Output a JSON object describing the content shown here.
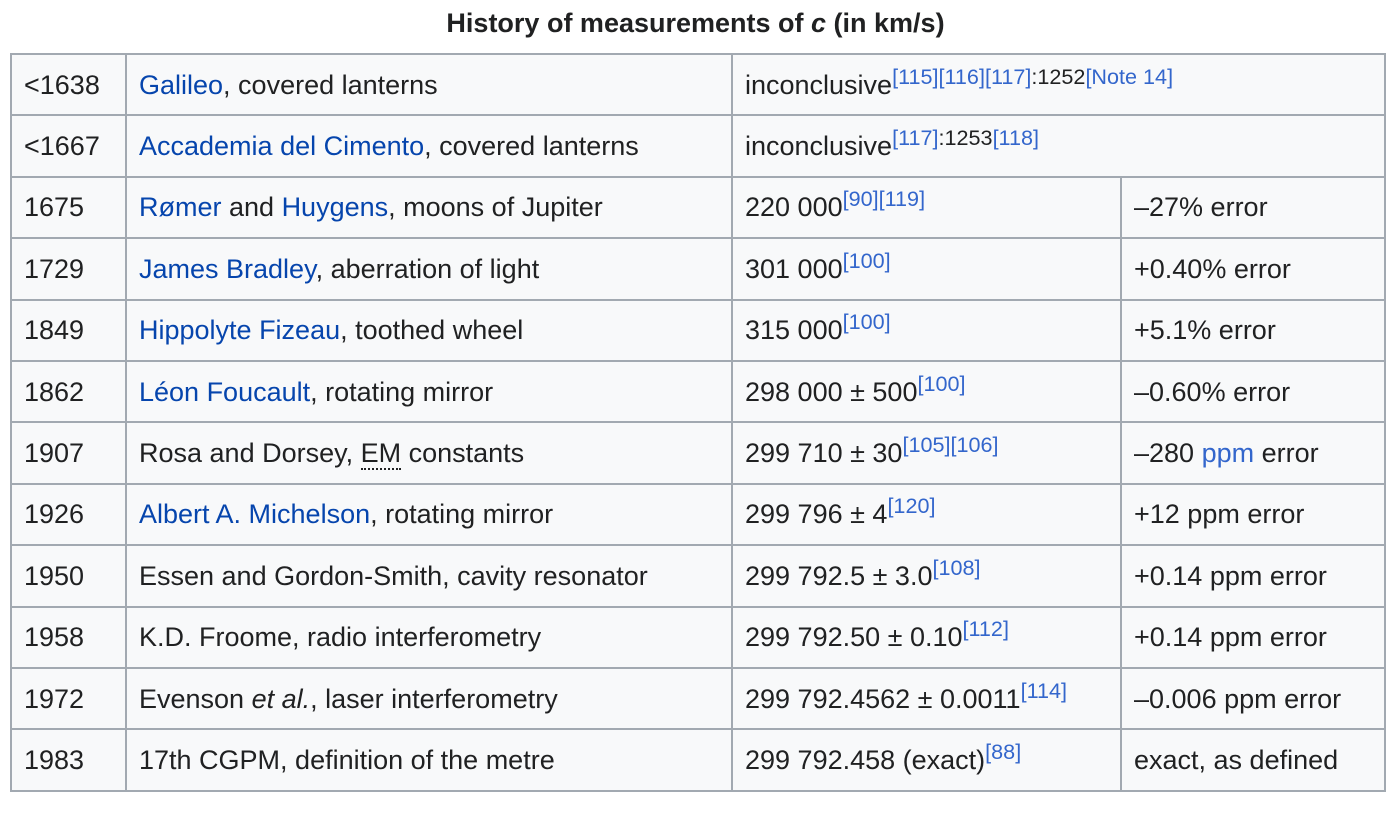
{
  "caption": {
    "prefix": "History of measurements of ",
    "var": "c",
    "suffix": " (in km/s)"
  },
  "rows": [
    {
      "year": "<1638",
      "link": "Galileo",
      "desc_rest": ", covered lanterns",
      "value": "inconclusive",
      "refs": [
        "[115]",
        "[116]",
        "[117]"
      ],
      "page": ":1252",
      "note": "[Note 14]"
    },
    {
      "year": "<1667",
      "link": "Accademia del Cimento",
      "desc_rest": ", covered lanterns",
      "value": "inconclusive",
      "refs": [
        "[117]"
      ],
      "page": ":1253",
      "refs2": [
        "[118]"
      ]
    },
    {
      "year": "1675",
      "link1": "Rømer",
      "and": " and ",
      "link2": "Huygens",
      "desc_rest": ", moons of Jupiter",
      "value": "220 000",
      "refs": [
        "[90]",
        "[119]"
      ],
      "error": "–27% error"
    },
    {
      "year": "1729",
      "link": "James Bradley",
      "desc_rest": ", aberration of light",
      "value": "301 000",
      "refs": [
        "[100]"
      ],
      "error": "+0.40% error"
    },
    {
      "year": "1849",
      "link": "Hippolyte Fizeau",
      "desc_rest": ", toothed wheel",
      "value": "315 000",
      "refs": [
        "[100]"
      ],
      "error": "+5.1% error"
    },
    {
      "year": "1862",
      "link": "Léon Foucault",
      "desc_rest": ", rotating mirror",
      "value": "298 000 ± 500",
      "refs": [
        "[100]"
      ],
      "error": "–0.60% error"
    },
    {
      "year": "1907",
      "desc_pre": "Rosa and Dorsey, ",
      "abbr": "EM",
      "desc_rest": " constants",
      "value": "299 710 ± 30",
      "refs": [
        "[105]",
        "[106]"
      ],
      "error_pre": "–280 ",
      "error_link": "ppm",
      "error_post": " error"
    },
    {
      "year": "1926",
      "link": "Albert A. Michelson",
      "desc_rest": ", rotating mirror",
      "value": "299 796 ± 4",
      "refs": [
        "[120]"
      ],
      "error": "+12 ppm error"
    },
    {
      "year": "1950",
      "desc": "Essen and Gordon-Smith, cavity resonator",
      "value": "299 792.5 ± 3.0",
      "refs": [
        "[108]"
      ],
      "error": "+0.14 ppm error"
    },
    {
      "year": "1958",
      "desc": "K.D. Froome, radio interferometry",
      "value": "299 792.50 ± 0.10",
      "refs": [
        "[112]"
      ],
      "error": "+0.14 ppm error"
    },
    {
      "year": "1972",
      "desc_pre": "Evenson ",
      "desc_ital": "et al.",
      "desc_rest": ", laser interferometry",
      "value": "299 792.4562 ± 0.0011",
      "refs": [
        "[114]"
      ],
      "error": "–0.006 ppm error"
    },
    {
      "year": "1983",
      "desc": "17th CGPM, definition of the metre",
      "value": "299 792.458 (exact)",
      "refs": [
        "[88]"
      ],
      "error": "exact, as defined"
    }
  ]
}
